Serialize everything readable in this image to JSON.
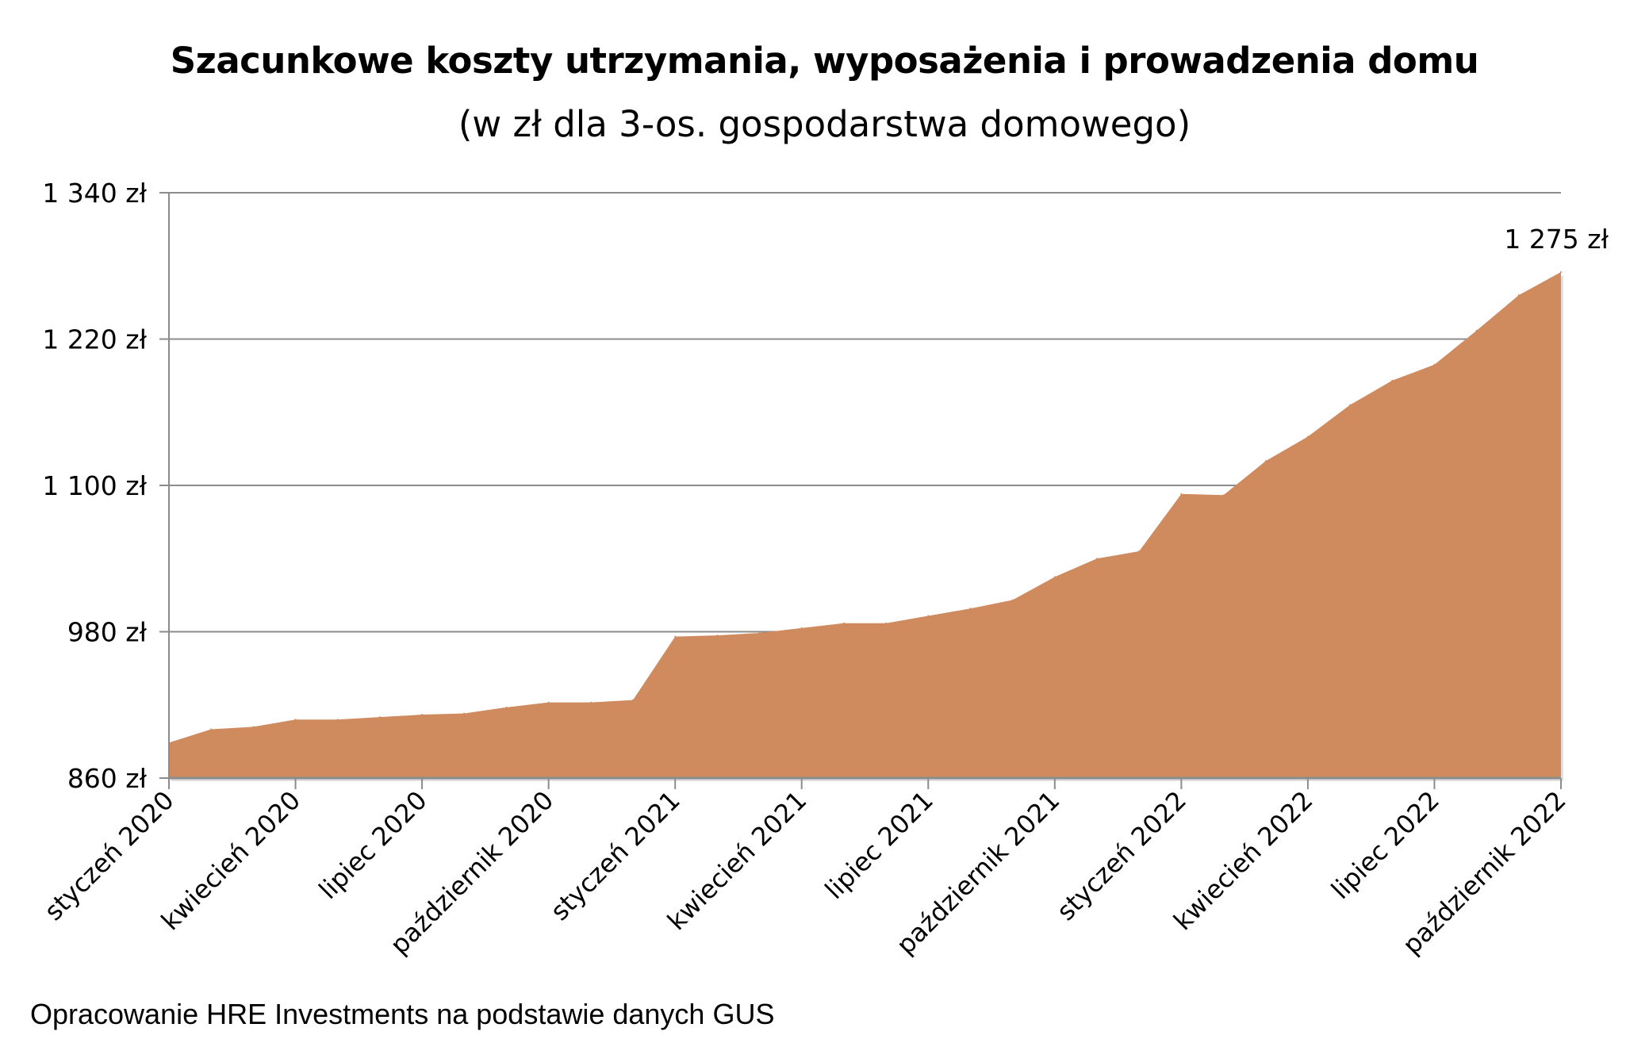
{
  "chart_data": {
    "type": "area",
    "title": "Szacunkowe koszty utrzymania, wyposażenia i prowadzenia domu",
    "subtitle": "(w zł dla 3-os. gospodarstwa domowego)",
    "xlabel": "",
    "ylabel": "",
    "ylim": [
      860,
      1340
    ],
    "yticks": [
      860,
      980,
      1100,
      1220,
      1340
    ],
    "ytick_labels": [
      "860 zł",
      "980 zł",
      "1 100 zł",
      "1 220 zł",
      "1 340 zł"
    ],
    "x": [
      "styczeń 2020",
      "luty 2020",
      "marzec 2020",
      "kwiecień 2020",
      "maj 2020",
      "czerwiec 2020",
      "lipiec 2020",
      "sierpień 2020",
      "wrzesień 2020",
      "październik 2020",
      "listopad 2020",
      "grudzień 2020",
      "styczeń 2021",
      "luty 2021",
      "marzec 2021",
      "kwiecień 2021",
      "maj 2021",
      "czerwiec 2021",
      "lipiec 2021",
      "sierpień 2021",
      "wrzesień 2021",
      "październik 2021",
      "listopad 2021",
      "grudzień 2021",
      "styczeń 2022",
      "luty 2022",
      "marzec 2022",
      "kwiecień 2022",
      "maj 2022",
      "czerwiec 2022",
      "lipiec 2022",
      "sierpień 2022",
      "wrzesień 2022",
      "październik 2022"
    ],
    "xtick_labels": [
      "styczeń 2020",
      "kwiecień 2020",
      "lipiec 2020",
      "październik 2020",
      "styczeń 2021",
      "kwiecień 2021",
      "lipiec 2021",
      "październik 2021",
      "styczeń 2022",
      "kwiecień 2022",
      "lipiec 2022",
      "październik 2022"
    ],
    "values": [
      889,
      900,
      902,
      908,
      908,
      910,
      912,
      913,
      918,
      922,
      922,
      924,
      976,
      977,
      979,
      983,
      987,
      987,
      993,
      999,
      1006,
      1025,
      1040,
      1046,
      1093,
      1092,
      1120,
      1140,
      1166,
      1186,
      1199,
      1227,
      1256,
      1275
    ],
    "data_label": "1 275 zł",
    "grid": true,
    "legend": "none",
    "fill_color": "#CF8B5E"
  },
  "footnote": "Opracowanie HRE Investments na podstawie danych GUS"
}
